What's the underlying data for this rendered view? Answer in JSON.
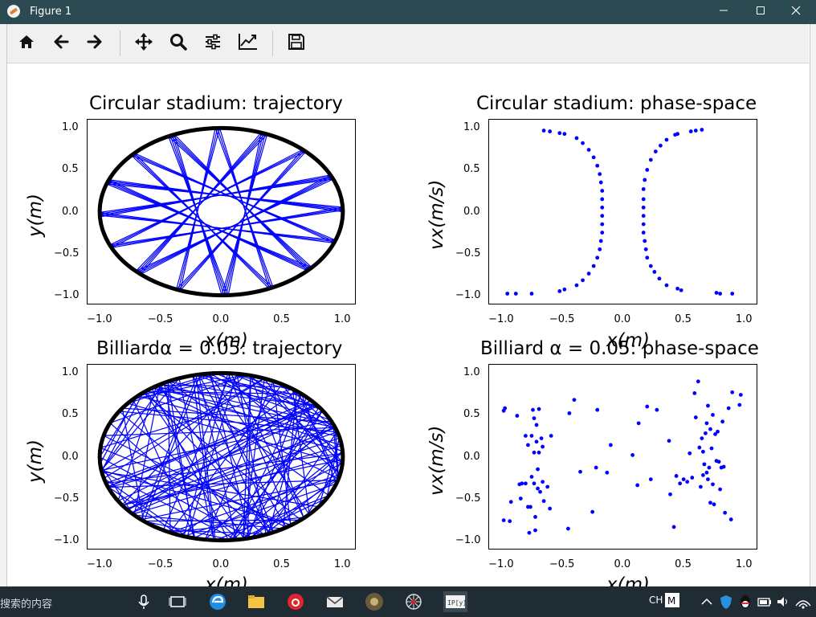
{
  "window": {
    "title": "Figure 1"
  },
  "toolbar": {
    "buttons": [
      {
        "icon": "home-icon"
      },
      {
        "icon": "back-arrow-icon"
      },
      {
        "icon": "forward-arrow-icon"
      },
      {
        "icon": "pan-icon"
      },
      {
        "icon": "zoom-icon"
      },
      {
        "icon": "subplots-icon"
      },
      {
        "icon": "axes-edit-icon"
      },
      {
        "icon": "save-icon"
      }
    ]
  },
  "taskbar": {
    "search_text": "搜索的内容",
    "ime": "CH"
  },
  "colors": {
    "trajectory": "#0000ff",
    "boundary": "#000000",
    "titlebar": "#2c4a52",
    "taskbar": "#1f2c33"
  },
  "plots": [
    {
      "title": "Circular stadium: trajectory",
      "xlabel": "x(m)",
      "ylabel": "y(m)"
    },
    {
      "title": "Circular stadium: phase-space",
      "xlabel": "x(m)",
      "ylabel": "vx(m/s)"
    },
    {
      "title": "Billiardα = 0.05: trajectory",
      "xlabel": "x(m)",
      "ylabel": "y(m)"
    },
    {
      "title": "Billiard α = 0.05: phase-space",
      "xlabel": "x(m)",
      "ylabel": "vx(m/s)"
    }
  ],
  "chart_data": [
    {
      "type": "line",
      "title": "Circular stadium: trajectory",
      "xlabel": "x(m)",
      "ylabel": "y(m)",
      "xlim": [
        -1.1,
        1.1
      ],
      "ylim": [
        -1.1,
        1.1
      ],
      "xticks": [
        "−1.0",
        "−0.5",
        "0.0",
        "0.5",
        "1.0"
      ],
      "yticks": [
        "1.0",
        "0.5",
        "0.0",
        "−0.5",
        "−1.0"
      ],
      "series": [
        {
          "name": "",
          "kind": "boundary",
          "color": "#000000",
          "shape": "circle",
          "radius": 1.0
        },
        {
          "name": "",
          "kind": "chords",
          "color": "#0000ff",
          "chord_count": 56,
          "chord_step": 2.75,
          "inner_radius": 0.15
        }
      ]
    },
    {
      "type": "scatter",
      "title": "Circular stadium: phase-space",
      "xlabel": "x(m)",
      "ylabel": "vx(m/s)",
      "xlim": [
        -1.1,
        1.1
      ],
      "ylim": [
        -1.1,
        1.1
      ],
      "xticks": [
        "−1.0",
        "−0.5",
        "0.0",
        "0.5",
        "1.0"
      ],
      "yticks": [
        "1.0",
        "0.5",
        "0.0",
        "−0.5",
        "−1.0"
      ],
      "series": [
        {
          "name": "",
          "color": "#0000ff",
          "points": [
            [
              -0.65,
              0.97
            ],
            [
              -0.6,
              0.96
            ],
            [
              -0.52,
              0.94
            ],
            [
              -0.48,
              0.93
            ],
            [
              -0.38,
              0.88
            ],
            [
              -0.33,
              0.82
            ],
            [
              -0.28,
              0.74
            ],
            [
              -0.24,
              0.65
            ],
            [
              -0.21,
              0.55
            ],
            [
              -0.19,
              0.45
            ],
            [
              -0.18,
              0.35
            ],
            [
              -0.17,
              0.25
            ],
            [
              -0.17,
              0.15
            ],
            [
              -0.17,
              0.05
            ],
            [
              -0.17,
              -0.05
            ],
            [
              -0.17,
              -0.15
            ],
            [
              -0.17,
              -0.25
            ],
            [
              -0.18,
              -0.35
            ],
            [
              -0.19,
              -0.45
            ],
            [
              -0.21,
              -0.55
            ],
            [
              -0.24,
              -0.65
            ],
            [
              -0.28,
              -0.74
            ],
            [
              -0.33,
              -0.82
            ],
            [
              -0.38,
              -0.88
            ],
            [
              -0.48,
              -0.93
            ],
            [
              -0.52,
              -0.95
            ],
            [
              -0.75,
              -0.98
            ],
            [
              -0.88,
              -0.98
            ],
            [
              -0.95,
              -0.98
            ],
            [
              0.65,
              0.98
            ],
            [
              0.6,
              0.97
            ],
            [
              0.56,
              0.96
            ],
            [
              0.45,
              0.93
            ],
            [
              0.43,
              0.92
            ],
            [
              0.36,
              0.86
            ],
            [
              0.31,
              0.79
            ],
            [
              0.27,
              0.72
            ],
            [
              0.23,
              0.62
            ],
            [
              0.2,
              0.5
            ],
            [
              0.18,
              0.38
            ],
            [
              0.17,
              0.27
            ],
            [
              0.17,
              0.15
            ],
            [
              0.17,
              0.05
            ],
            [
              0.17,
              -0.05
            ],
            [
              0.17,
              -0.15
            ],
            [
              0.17,
              -0.25
            ],
            [
              0.18,
              -0.35
            ],
            [
              0.19,
              -0.45
            ],
            [
              0.2,
              -0.55
            ],
            [
              0.23,
              -0.65
            ],
            [
              0.26,
              -0.72
            ],
            [
              0.3,
              -0.8
            ],
            [
              0.36,
              -0.88
            ],
            [
              0.45,
              -0.92
            ],
            [
              0.48,
              -0.94
            ],
            [
              0.77,
              -0.97
            ],
            [
              0.8,
              -0.98
            ],
            [
              0.9,
              -0.98
            ]
          ]
        }
      ]
    },
    {
      "type": "line",
      "title": "Billiardα = 0.05: trajectory",
      "xlabel": "x(m)",
      "ylabel": "y(m)",
      "xlim": [
        -1.1,
        1.1
      ],
      "ylim": [
        -1.1,
        1.1
      ],
      "xticks": [
        "−1.0",
        "−0.5",
        "0.0",
        "0.5",
        "1.0"
      ],
      "yticks": [
        "1.0",
        "0.5",
        "0.0",
        "−0.5",
        "−1.0"
      ],
      "series": [
        {
          "name": "",
          "kind": "boundary",
          "color": "#000000",
          "shape": "stadium",
          "radius": 1.0
        },
        {
          "name": "",
          "kind": "chaotic-chords",
          "color": "#0000ff",
          "chord_count": 140
        }
      ]
    },
    {
      "type": "scatter",
      "title": "Billiard α = 0.05: phase-space",
      "xlabel": "x(m)",
      "ylabel": "vx(m/s)",
      "xlim": [
        -1.1,
        1.1
      ],
      "ylim": [
        -1.1,
        1.1
      ],
      "xticks": [
        "−1.0",
        "−0.5",
        "0.0",
        "0.5",
        "1.0"
      ],
      "yticks": [
        "1.0",
        "0.5",
        "0.0",
        "−0.5",
        "−1.0"
      ],
      "series": [
        {
          "name": "",
          "color": "#0000ff",
          "points": [
            [
              -0.98,
              0.55
            ],
            [
              -0.97,
              0.58
            ],
            [
              -0.98,
              -0.76
            ],
            [
              -0.93,
              -0.77
            ],
            [
              -0.92,
              -0.54
            ],
            [
              -0.87,
              0.49
            ],
            [
              -0.85,
              -0.33
            ],
            [
              -0.84,
              -0.5
            ],
            [
              -0.83,
              -0.32
            ],
            [
              -0.8,
              -0.32
            ],
            [
              -0.8,
              0.25
            ],
            [
              -0.78,
              0.14
            ],
            [
              -0.78,
              -0.6
            ],
            [
              -0.77,
              -0.91
            ],
            [
              -0.76,
              -0.6
            ],
            [
              -0.75,
              -0.24
            ],
            [
              -0.75,
              0.25
            ],
            [
              -0.74,
              0.56
            ],
            [
              -0.73,
              0.46
            ],
            [
              -0.73,
              0.05
            ],
            [
              -0.73,
              -0.32
            ],
            [
              -0.72,
              -0.88
            ],
            [
              -0.72,
              -0.72
            ],
            [
              -0.71,
              0.38
            ],
            [
              -0.71,
              0.18
            ],
            [
              -0.7,
              -0.15
            ],
            [
              -0.7,
              -0.38
            ],
            [
              -0.69,
              0.05
            ],
            [
              -0.69,
              0.57
            ],
            [
              -0.68,
              -0.42
            ],
            [
              -0.67,
              0.22
            ],
            [
              -0.66,
              0.12
            ],
            [
              -0.66,
              -0.3
            ],
            [
              -0.65,
              -0.53
            ],
            [
              -0.62,
              -0.36
            ],
            [
              -0.6,
              -0.62
            ],
            [
              -0.59,
              0.25
            ],
            [
              -0.45,
              -0.86
            ],
            [
              -0.44,
              0.52
            ],
            [
              -0.4,
              0.68
            ],
            [
              -0.35,
              -0.18
            ],
            [
              -0.25,
              -0.66
            ],
            [
              -0.22,
              -0.13
            ],
            [
              -0.21,
              0.56
            ],
            [
              -0.13,
              -0.19
            ],
            [
              -0.1,
              0.14
            ],
            [
              0.08,
              0.02
            ],
            [
              0.12,
              -0.34
            ],
            [
              0.13,
              0.4
            ],
            [
              0.2,
              0.6
            ],
            [
              0.23,
              -0.27
            ],
            [
              0.28,
              0.56
            ],
            [
              0.38,
              0.19
            ],
            [
              0.39,
              -0.45
            ],
            [
              0.42,
              -0.84
            ],
            [
              0.44,
              -0.23
            ],
            [
              0.47,
              -0.32
            ],
            [
              0.5,
              -0.27
            ],
            [
              0.53,
              -0.3
            ],
            [
              0.55,
              0.04
            ],
            [
              0.57,
              -0.25
            ],
            [
              0.59,
              0.76
            ],
            [
              0.6,
              0.47
            ],
            [
              0.62,
              0.9
            ],
            [
              0.63,
              0.11
            ],
            [
              0.64,
              -0.36
            ],
            [
              0.65,
              0.22
            ],
            [
              0.66,
              -0.22
            ],
            [
              0.66,
              0.06
            ],
            [
              0.67,
              -0.09
            ],
            [
              0.68,
              0.28
            ],
            [
              0.69,
              -0.19
            ],
            [
              0.69,
              0.4
            ],
            [
              0.7,
              -0.27
            ],
            [
              0.7,
              0.61
            ],
            [
              0.71,
              -0.13
            ],
            [
              0.72,
              0.33
            ],
            [
              0.72,
              -0.55
            ],
            [
              0.73,
              0.1
            ],
            [
              0.74,
              0.5
            ],
            [
              0.74,
              -0.33
            ],
            [
              0.75,
              -0.57
            ],
            [
              0.76,
              0.27
            ],
            [
              0.77,
              -0.05
            ],
            [
              0.78,
              0.3
            ],
            [
              0.79,
              -0.06
            ],
            [
              0.8,
              -0.39
            ],
            [
              0.81,
              -0.13
            ],
            [
              0.82,
              0.42
            ],
            [
              0.83,
              -0.12
            ],
            [
              0.84,
              -0.67
            ],
            [
              0.87,
              0.58
            ],
            [
              0.89,
              -0.75
            ],
            [
              0.9,
              0.77
            ],
            [
              0.96,
              0.62
            ],
            [
              0.97,
              0.74
            ]
          ]
        }
      ]
    }
  ]
}
